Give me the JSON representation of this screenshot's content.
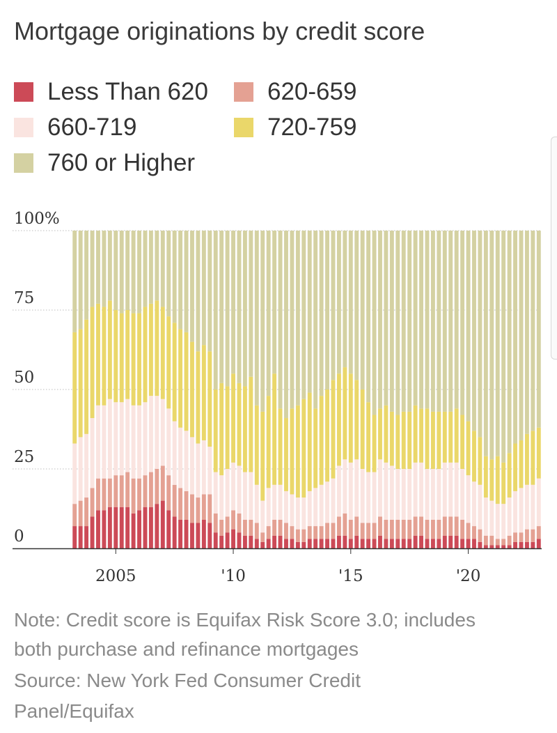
{
  "title": "Mortgage originations by credit score",
  "legend": [
    {
      "label": "Less Than 620",
      "color": "#cc4a57"
    },
    {
      "label": "620-659",
      "color": "#e4a193"
    },
    {
      "label": "660-719",
      "color": "#fae4e0"
    },
    {
      "label": "720-759",
      "color": "#ead76a"
    },
    {
      "label": "760 or Higher",
      "color": "#d4d1a2"
    }
  ],
  "note": {
    "line1": "Note: Credit score is Equifax Risk Score 3.0; includes",
    "line2": "both purchase and refinance mortgages",
    "line3": "Source: New York Fed Consumer Credit",
    "line4": "Panel/Equifax"
  },
  "chart_data": {
    "type": "bar",
    "stacked": true,
    "y_unit": "percent",
    "ylim": [
      0,
      100
    ],
    "yticks": [
      0,
      25,
      50,
      75,
      100
    ],
    "ytick_labels": [
      "0",
      "25",
      "50",
      "75",
      "100%"
    ],
    "xticks": [
      {
        "label": "2005",
        "index": 7
      },
      {
        "label": "'10",
        "index": 27
      },
      {
        "label": "'15",
        "index": 47
      },
      {
        "label": "'20",
        "index": 67
      }
    ],
    "categories": [
      "2003Q1",
      "2003Q2",
      "2003Q3",
      "2003Q4",
      "2004Q1",
      "2004Q2",
      "2004Q3",
      "2004Q4",
      "2005Q1",
      "2005Q2",
      "2005Q3",
      "2005Q4",
      "2006Q1",
      "2006Q2",
      "2006Q3",
      "2006Q4",
      "2007Q1",
      "2007Q2",
      "2007Q3",
      "2007Q4",
      "2008Q1",
      "2008Q2",
      "2008Q3",
      "2008Q4",
      "2009Q1",
      "2009Q2",
      "2009Q3",
      "2009Q4",
      "2010Q1",
      "2010Q2",
      "2010Q3",
      "2010Q4",
      "2011Q1",
      "2011Q2",
      "2011Q3",
      "2011Q4",
      "2012Q1",
      "2012Q2",
      "2012Q3",
      "2012Q4",
      "2013Q1",
      "2013Q2",
      "2013Q3",
      "2013Q4",
      "2014Q1",
      "2014Q2",
      "2014Q3",
      "2014Q4",
      "2015Q1",
      "2015Q2",
      "2015Q3",
      "2015Q4",
      "2016Q1",
      "2016Q2",
      "2016Q3",
      "2016Q4",
      "2017Q1",
      "2017Q2",
      "2017Q3",
      "2017Q4",
      "2018Q1",
      "2018Q2",
      "2018Q3",
      "2018Q4",
      "2019Q1",
      "2019Q2",
      "2019Q3",
      "2019Q4",
      "2020Q1",
      "2020Q2",
      "2020Q3",
      "2020Q4",
      "2021Q1",
      "2021Q2",
      "2021Q3",
      "2021Q4",
      "2022Q1",
      "2022Q2",
      "2022Q3",
      "2022Q4"
    ],
    "cumulative_tops": {
      "Less Than 620": [
        7,
        7,
        7,
        10,
        12,
        12,
        13,
        13,
        13,
        13,
        11,
        12,
        13,
        13,
        14,
        15,
        12,
        10,
        9,
        9,
        8,
        8,
        9,
        8,
        5,
        4,
        5,
        6,
        5,
        4,
        4,
        3,
        2,
        3,
        4,
        4,
        3,
        3,
        2,
        2,
        3,
        3,
        3,
        3,
        3,
        4,
        4,
        3,
        4,
        3,
        3,
        3,
        4,
        3,
        3,
        3,
        3,
        3,
        4,
        4,
        3,
        3,
        3,
        4,
        4,
        4,
        3,
        3,
        3,
        2,
        1,
        1,
        1,
        1,
        1,
        2,
        2,
        2,
        2,
        3
      ],
      "620-659": [
        14,
        15,
        16,
        19,
        22,
        22,
        22,
        23,
        23,
        24,
        22,
        22,
        23,
        24,
        25,
        26,
        23,
        20,
        19,
        18,
        17,
        16,
        17,
        17,
        11,
        9,
        10,
        12,
        11,
        9,
        9,
        8,
        5,
        7,
        9,
        9,
        8,
        7,
        6,
        6,
        7,
        7,
        7,
        8,
        8,
        10,
        11,
        9,
        10,
        8,
        8,
        8,
        10,
        9,
        9,
        9,
        9,
        9,
        10,
        10,
        9,
        9,
        9,
        10,
        10,
        10,
        9,
        8,
        7,
        6,
        4,
        4,
        3,
        3,
        4,
        5,
        5,
        6,
        6,
        7
      ],
      "660-719": [
        33,
        35,
        36,
        41,
        45,
        45,
        47,
        46,
        46,
        47,
        45,
        45,
        46,
        48,
        48,
        47,
        44,
        40,
        38,
        37,
        35,
        33,
        34,
        32,
        24,
        23,
        25,
        27,
        26,
        24,
        24,
        20,
        15,
        19,
        20,
        20,
        18,
        17,
        16,
        16,
        18,
        19,
        20,
        21,
        22,
        26,
        28,
        27,
        28,
        25,
        24,
        24,
        28,
        27,
        26,
        25,
        25,
        25,
        27,
        27,
        25,
        25,
        25,
        27,
        27,
        27,
        25,
        23,
        21,
        20,
        16,
        15,
        14,
        14,
        16,
        18,
        19,
        20,
        20,
        22
      ],
      "720-759": [
        68,
        69,
        72,
        76,
        77,
        76,
        78,
        75,
        74,
        75,
        74,
        74,
        76,
        77,
        78,
        76,
        73,
        71,
        69,
        68,
        65,
        62,
        64,
        62,
        50,
        52,
        51,
        55,
        52,
        51,
        54,
        45,
        43,
        48,
        55,
        44,
        41,
        44,
        45,
        47,
        49,
        44,
        48,
        50,
        53,
        55,
        57,
        55,
        53,
        50,
        46,
        42,
        44,
        45,
        43,
        42,
        43,
        43,
        45,
        44,
        44,
        43,
        43,
        43,
        43,
        44,
        42,
        40,
        37,
        35,
        29,
        28,
        29,
        27,
        30,
        33,
        34,
        36,
        37,
        38
      ],
      "760 or Higher": [
        100,
        100,
        100,
        100,
        100,
        100,
        100,
        100,
        100,
        100,
        100,
        100,
        100,
        100,
        100,
        100,
        100,
        100,
        100,
        100,
        100,
        100,
        100,
        100,
        100,
        100,
        100,
        100,
        100,
        100,
        100,
        100,
        100,
        100,
        100,
        100,
        100,
        100,
        100,
        100,
        100,
        100,
        100,
        100,
        100,
        100,
        100,
        100,
        100,
        100,
        100,
        100,
        100,
        100,
        100,
        100,
        100,
        100,
        100,
        100,
        100,
        100,
        100,
        100,
        100,
        100,
        100,
        100,
        100,
        100,
        100,
        100,
        100,
        100,
        100,
        100,
        100,
        100,
        100,
        100
      ]
    },
    "grid": "horizontal dotted",
    "legend_position": "top"
  }
}
